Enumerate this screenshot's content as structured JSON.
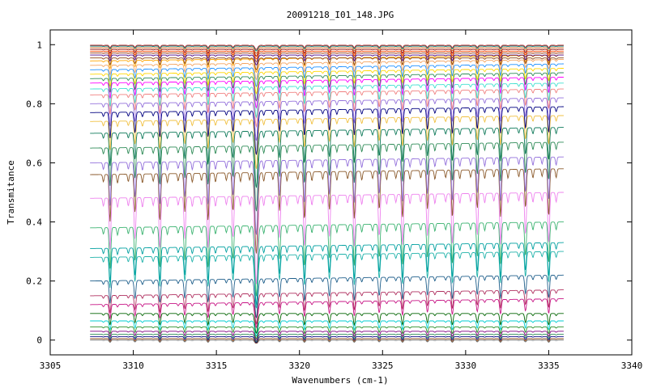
{
  "chart_data": {
    "type": "line",
    "title": "20091218_I01_148.JPG",
    "xlabel": "Wavenumbers (cm-1)",
    "ylabel": "Transmitance",
    "xlim": [
      3305,
      3340
    ],
    "ylim": [
      -0.05,
      1.05
    ],
    "x_ticks": [
      "3305",
      "3310",
      "3315",
      "3320",
      "3325",
      "3330",
      "3335",
      "3340"
    ],
    "y_ticks": [
      "0",
      "0.2",
      "0.4",
      "0.6",
      "0.8",
      "1"
    ],
    "x_range_data": [
      3307.4,
      3335.9
    ],
    "grid": false,
    "legend": "none",
    "absorption_lines": [
      3308.6,
      3310.1,
      3311.6,
      3313.1,
      3314.5,
      3316.0,
      3317.4,
      3318.8,
      3320.3,
      3321.8,
      3323.3,
      3324.8,
      3326.2,
      3327.7,
      3329.2,
      3330.7,
      3332.1,
      3333.6,
      3335.0
    ],
    "strong_line": 3317.4,
    "series": [
      {
        "baseline": 0.0,
        "color": "#6b6b6b"
      },
      {
        "baseline": 0.005,
        "color": "#8b4513"
      },
      {
        "baseline": 0.012,
        "color": "#000080"
      },
      {
        "baseline": 0.02,
        "color": "#2e8b57"
      },
      {
        "baseline": 0.03,
        "color": "#800080"
      },
      {
        "baseline": 0.045,
        "color": "#228b22"
      },
      {
        "baseline": 0.065,
        "color": "#00ced1"
      },
      {
        "baseline": 0.09,
        "color": "#006400"
      },
      {
        "baseline": 0.12,
        "color": "#c71585"
      },
      {
        "baseline": 0.15,
        "color": "#b03060"
      },
      {
        "baseline": 0.2,
        "color": "#1f5f8b"
      },
      {
        "baseline": 0.28,
        "color": "#20b2aa"
      },
      {
        "baseline": 0.31,
        "color": "#00a0a0"
      },
      {
        "baseline": 0.38,
        "color": "#3cb371"
      },
      {
        "baseline": 0.48,
        "color": "#ee82ee"
      },
      {
        "baseline": 0.56,
        "color": "#8b5a2b"
      },
      {
        "baseline": 0.6,
        "color": "#9370db"
      },
      {
        "baseline": 0.65,
        "color": "#2e8b57"
      },
      {
        "baseline": 0.7,
        "color": "#0f7a5a"
      },
      {
        "baseline": 0.74,
        "color": "#f0c040"
      },
      {
        "baseline": 0.77,
        "color": "#000080"
      },
      {
        "baseline": 0.8,
        "color": "#9370db"
      },
      {
        "baseline": 0.83,
        "color": "#f08080"
      },
      {
        "baseline": 0.85,
        "color": "#40e0d0"
      },
      {
        "baseline": 0.87,
        "color": "#ff00ff"
      },
      {
        "baseline": 0.885,
        "color": "#2e8b57"
      },
      {
        "baseline": 0.9,
        "color": "#ffd700"
      },
      {
        "baseline": 0.915,
        "color": "#1e90ff"
      },
      {
        "baseline": 0.93,
        "color": "#f4a460"
      },
      {
        "baseline": 0.945,
        "color": "#ffa500"
      },
      {
        "baseline": 0.955,
        "color": "#8b4513"
      },
      {
        "baseline": 0.965,
        "color": "#4b0082"
      },
      {
        "baseline": 0.972,
        "color": "#a0522d"
      },
      {
        "baseline": 0.978,
        "color": "#ff4500"
      },
      {
        "baseline": 0.984,
        "color": "#8b0000"
      },
      {
        "baseline": 0.99,
        "color": "#d2691e"
      },
      {
        "baseline": 0.995,
        "color": "#008080"
      },
      {
        "baseline": 0.998,
        "color": "#b22222"
      }
    ]
  }
}
